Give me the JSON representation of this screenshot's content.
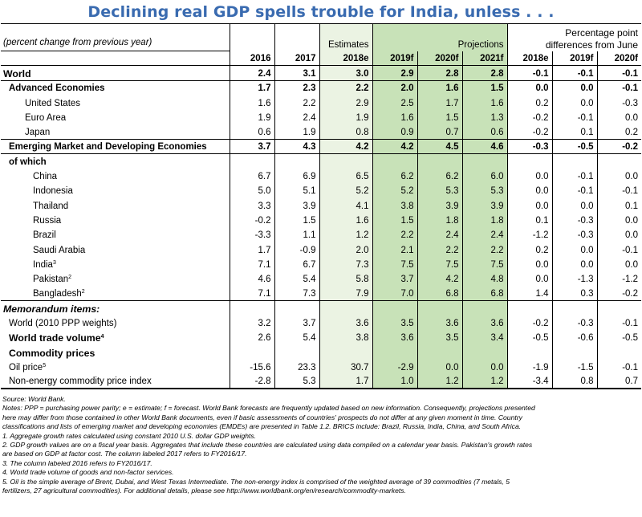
{
  "title": "Declining real GDP spells trouble for India, unless  . . .",
  "header": {
    "unit_label": "(percent change from previous year)",
    "estimates": "Estimates",
    "projections": "Projections",
    "diff_line1": "Percentage point",
    "diff_line2": "differences from June",
    "years": [
      "2016",
      "2017",
      "2018e",
      "2019f",
      "2020f",
      "2021f",
      "2018e",
      "2019f",
      "2020f"
    ]
  },
  "rows": [
    {
      "label": "World",
      "values": [
        "2.4",
        "3.1",
        "3.0",
        "2.9",
        "2.8",
        "2.8",
        "-0.1",
        "-0.1",
        "-0.1"
      ]
    },
    {
      "label": "Advanced Economies",
      "values": [
        "1.7",
        "2.3",
        "2.2",
        "2.0",
        "1.6",
        "1.5",
        "0.0",
        "0.0",
        "-0.1"
      ]
    },
    {
      "label": "United States",
      "values": [
        "1.6",
        "2.2",
        "2.9",
        "2.5",
        "1.7",
        "1.6",
        "0.2",
        "0.0",
        "-0.3"
      ]
    },
    {
      "label": "Euro Area",
      "values": [
        "1.9",
        "2.4",
        "1.9",
        "1.6",
        "1.5",
        "1.3",
        "-0.2",
        "-0.1",
        "0.0"
      ]
    },
    {
      "label": "Japan",
      "values": [
        "0.6",
        "1.9",
        "0.8",
        "0.9",
        "0.7",
        "0.6",
        "-0.2",
        "0.1",
        "0.2"
      ]
    },
    {
      "label": "Emerging Market and Developing Economies",
      "values": [
        "3.7",
        "4.3",
        "4.2",
        "4.2",
        "4.5",
        "4.6",
        "-0.3",
        "-0.5",
        "-0.2"
      ]
    },
    {
      "label": "of which",
      "values": [
        "",
        "",
        "",
        "",
        "",
        "",
        "",
        "",
        ""
      ]
    },
    {
      "label": "China",
      "values": [
        "6.7",
        "6.9",
        "6.5",
        "6.2",
        "6.2",
        "6.0",
        "0.0",
        "-0.1",
        "0.0"
      ]
    },
    {
      "label": "Indonesia",
      "values": [
        "5.0",
        "5.1",
        "5.2",
        "5.2",
        "5.3",
        "5.3",
        "0.0",
        "-0.1",
        "-0.1"
      ]
    },
    {
      "label": "Thailand",
      "values": [
        "3.3",
        "3.9",
        "4.1",
        "3.8",
        "3.9",
        "3.9",
        "0.0",
        "0.0",
        "0.1"
      ]
    },
    {
      "label": "Russia",
      "values": [
        "-0.2",
        "1.5",
        "1.6",
        "1.5",
        "1.8",
        "1.8",
        "0.1",
        "-0.3",
        "0.0"
      ]
    },
    {
      "label": "Brazil",
      "values": [
        "-3.3",
        "1.1",
        "1.2",
        "2.2",
        "2.4",
        "2.4",
        "-1.2",
        "-0.3",
        "0.0"
      ]
    },
    {
      "label": "Saudi Arabia",
      "values": [
        "1.7",
        "-0.9",
        "2.0",
        "2.1",
        "2.2",
        "2.2",
        "0.2",
        "0.0",
        "-0.1"
      ]
    },
    {
      "label": "India",
      "sup": "3",
      "values": [
        "7.1",
        "6.7",
        "7.3",
        "7.5",
        "7.5",
        "7.5",
        "0.0",
        "0.0",
        "0.0"
      ]
    },
    {
      "label": "Pakistan",
      "sup": "2",
      "values": [
        "4.6",
        "5.4",
        "5.8",
        "3.7",
        "4.2",
        "4.8",
        "0.0",
        "-1.3",
        "-1.2"
      ]
    },
    {
      "label": "Bangladesh",
      "sup": "2",
      "values": [
        "7.1",
        "7.3",
        "7.9",
        "7.0",
        "6.8",
        "6.8",
        "1.4",
        "0.3",
        "-0.2"
      ]
    },
    {
      "label": "Memorandum items:",
      "values": [
        "",
        "",
        "",
        "",
        "",
        "",
        "",
        "",
        ""
      ]
    },
    {
      "label": "World (2010 PPP weights)",
      "values": [
        "3.2",
        "3.7",
        "3.6",
        "3.5",
        "3.6",
        "3.6",
        "-0.2",
        "-0.3",
        "-0.1"
      ]
    },
    {
      "label": "World trade volume",
      "sup": "4",
      "values": [
        "2.6",
        "5.4",
        "3.8",
        "3.6",
        "3.5",
        "3.4",
        "-0.5",
        "-0.6",
        "-0.5"
      ]
    },
    {
      "label": "Commodity prices",
      "values": [
        "",
        "",
        "",
        "",
        "",
        "",
        "",
        "",
        ""
      ]
    },
    {
      "label": "Oil price",
      "sup": "5",
      "values": [
        "-15.6",
        "23.3",
        "30.7",
        "-2.9",
        "0.0",
        "0.0",
        "-1.9",
        "-1.5",
        "-0.1"
      ]
    },
    {
      "label": "Non-energy commodity price index",
      "values": [
        "-2.8",
        "5.3",
        "1.7",
        "1.0",
        "1.2",
        "1.2",
        "-3.4",
        "0.8",
        "0.7"
      ]
    }
  ],
  "notes": [
    "Source: World Bank.",
    "Notes: PPP = purchasing power parity; e = estimate; f = forecast. World Bank forecasts are frequently updated based on new information. Consequently, projections presented",
    "here may differ from those contained in other World Bank documents, even if basic assessments of countries' prospects do not differ at any given moment in time. Country",
    "classifications and lists of emerging market and developing economies (EMDEs) are presented in Table 1.2. BRICS include: Brazil, Russia, India, China, and South Africa.",
    "1. Aggregate growth rates calculated using constant 2010 U.S. dollar GDP weights.",
    "2. GDP growth values are on a fiscal year basis. Aggregates that include these countries are calculated using data compiled on a calendar year basis. Pakistan's growth rates",
    "are based on GDP at factor cost. The column labeled 2017 refers to FY2016/17.",
    "3. The column labeled 2016 refers to FY2016/17.",
    "4. World trade volume of goods and non-factor services.",
    "5. Oil is the simple average of Brent, Dubai, and West Texas Intermediate. The non-energy index is comprised of the weighted average of 39 commodities (7 metals, 5",
    "fertilizers, 27 agricultural commodities). For additional details, please see http://www.worldbank.org/en/research/commodity-markets."
  ]
}
